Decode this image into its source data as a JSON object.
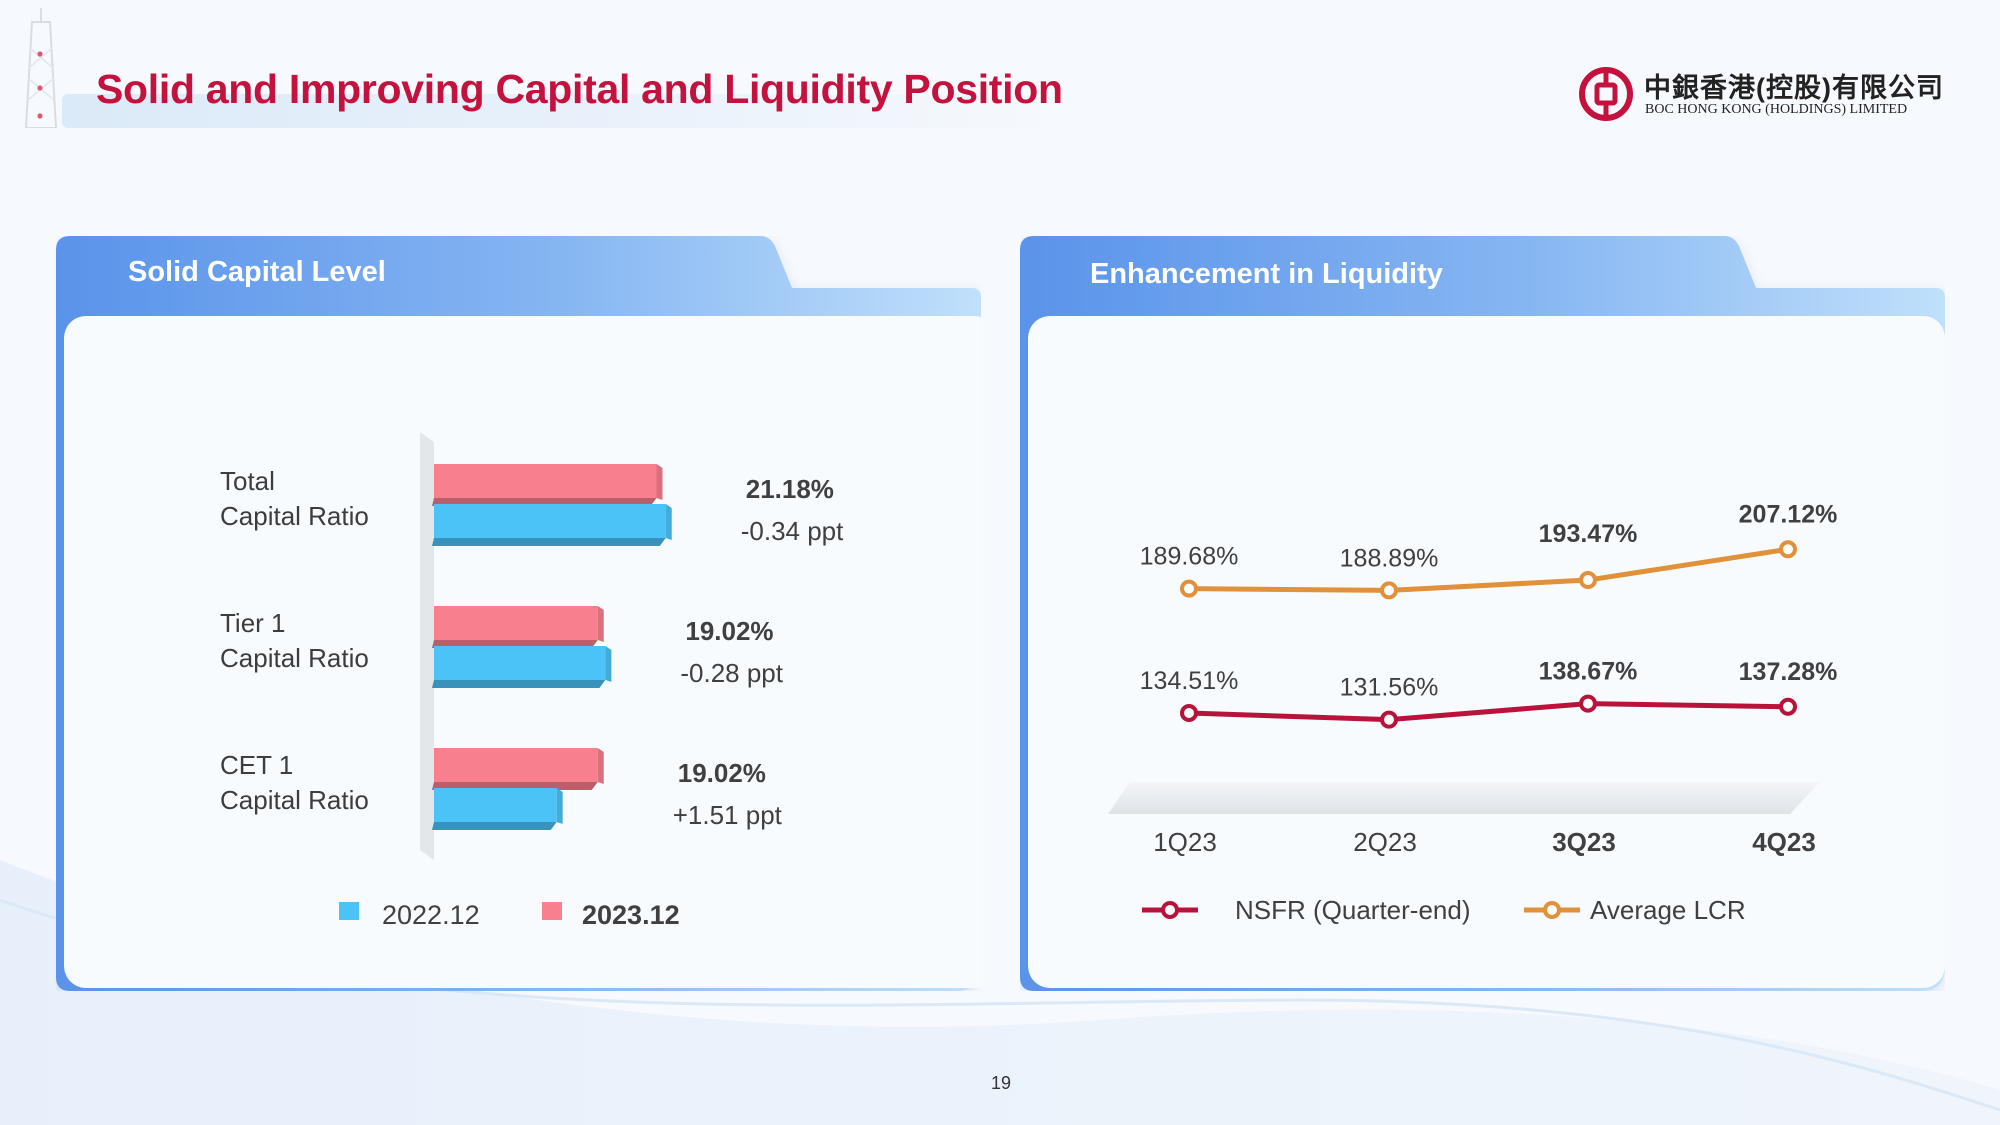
{
  "slide": {
    "title": "Solid and Improving Capital and Liquidity Position",
    "page_number": "19"
  },
  "logo": {
    "chinese_name": "中銀香港(控股)有限公司",
    "english_name": "BOC HONG KONG (HOLDINGS) LIMITED"
  },
  "colors": {
    "title_red": "#c4123f",
    "bar_2022": "#4cc3f7",
    "bar_2023": "#f77f8e",
    "nsfr_line": "#b8133b",
    "lcr_line": "#e0913a",
    "panel_header": "#5e97ea"
  },
  "panels": {
    "capital": {
      "header": "Solid Capital Level"
    },
    "liquidity": {
      "header": "Enhancement in Liquidity"
    }
  },
  "chart_data": [
    {
      "type": "bar",
      "orientation": "horizontal",
      "categories": [
        [
          "Total",
          "Capital Ratio"
        ],
        [
          "Tier 1",
          "Capital Ratio"
        ],
        [
          "CET 1",
          "Capital Ratio"
        ]
      ],
      "series": [
        {
          "name": "2022.12",
          "values": [
            21.52,
            19.3,
            17.51
          ],
          "color": "#4cc3f7"
        },
        {
          "name": "2023.12",
          "values": [
            21.18,
            19.02,
            19.02
          ],
          "color": "#f77f8e"
        }
      ],
      "data_labels": [
        "21.18%",
        "19.02%",
        "19.02%"
      ],
      "change_labels": [
        "-0.34 ppt",
        "-0.28 ppt",
        "+1.51 ppt"
      ],
      "legend": {
        "position": "bottom",
        "items": [
          {
            "label": "2022.12",
            "bold": false
          },
          {
            "label": "2023.12",
            "bold": true
          }
        ]
      },
      "axis": {
        "visible": false,
        "xlim": [
          13,
          23
        ]
      },
      "grid": false
    },
    {
      "type": "line",
      "categories": [
        "1Q23",
        "2Q23",
        "3Q23",
        "4Q23"
      ],
      "category_bold": [
        false,
        false,
        true,
        true
      ],
      "series": [
        {
          "name": "NSFR (Quarter-end)",
          "values": [
            134.51,
            131.56,
            138.67,
            137.28
          ],
          "labels": [
            "134.51%",
            "131.56%",
            "138.67%",
            "137.28%"
          ],
          "label_bold": [
            false,
            false,
            true,
            true
          ],
          "color": "#b8133b"
        },
        {
          "name": "Average LCR",
          "values": [
            189.68,
            188.89,
            193.47,
            207.12
          ],
          "labels": [
            "189.68%",
            "188.89%",
            "193.47%",
            "207.12%"
          ],
          "label_bold": [
            false,
            false,
            true,
            true
          ],
          "color": "#e0913a"
        }
      ],
      "legend": {
        "position": "bottom"
      },
      "axis": {
        "y_visible": false
      },
      "grid": false
    }
  ]
}
